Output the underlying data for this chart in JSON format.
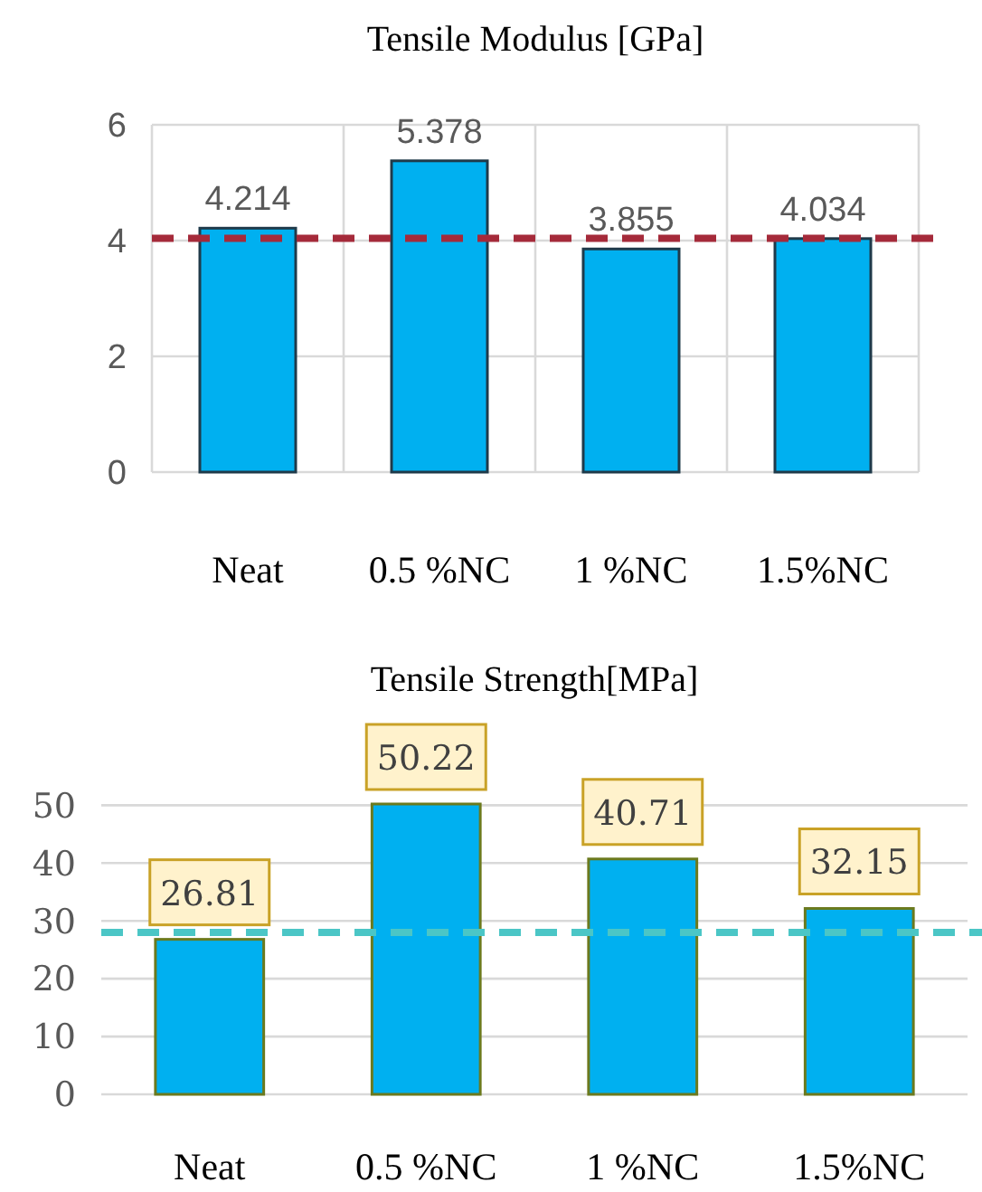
{
  "chart_data": [
    {
      "type": "bar",
      "title": "Tensile Modulus [GPa]",
      "categories": [
        "Neat",
        "0.5 %NC",
        "1 %NC",
        "1.5%NC"
      ],
      "values": [
        4.214,
        5.378,
        3.855,
        4.034
      ],
      "color": "#00b0f0",
      "ylim": [
        0,
        6
      ],
      "yticks": [
        0,
        2,
        4,
        6
      ],
      "grid": true,
      "data_labels": true,
      "ref_lines": [
        {
          "axis": "y",
          "value": 4.04,
          "color": "#a52a3a",
          "line_style": "dashed"
        }
      ]
    },
    {
      "type": "bar",
      "title": "Tensile Strength[MPa]",
      "categories": [
        "Neat",
        "0.5 %NC",
        "1 %NC",
        "1.5%NC"
      ],
      "values": [
        26.81,
        50.22,
        40.71,
        32.15
      ],
      "color": "#00b0f0",
      "ylim": [
        0,
        51
      ],
      "yticks": [
        0,
        10,
        20,
        30,
        40,
        50
      ],
      "grid": "y",
      "data_labels": true,
      "ref_lines": [
        {
          "axis": "y",
          "value": 28,
          "color": "#4bc6c6",
          "line_style": "dashed"
        }
      ]
    }
  ]
}
